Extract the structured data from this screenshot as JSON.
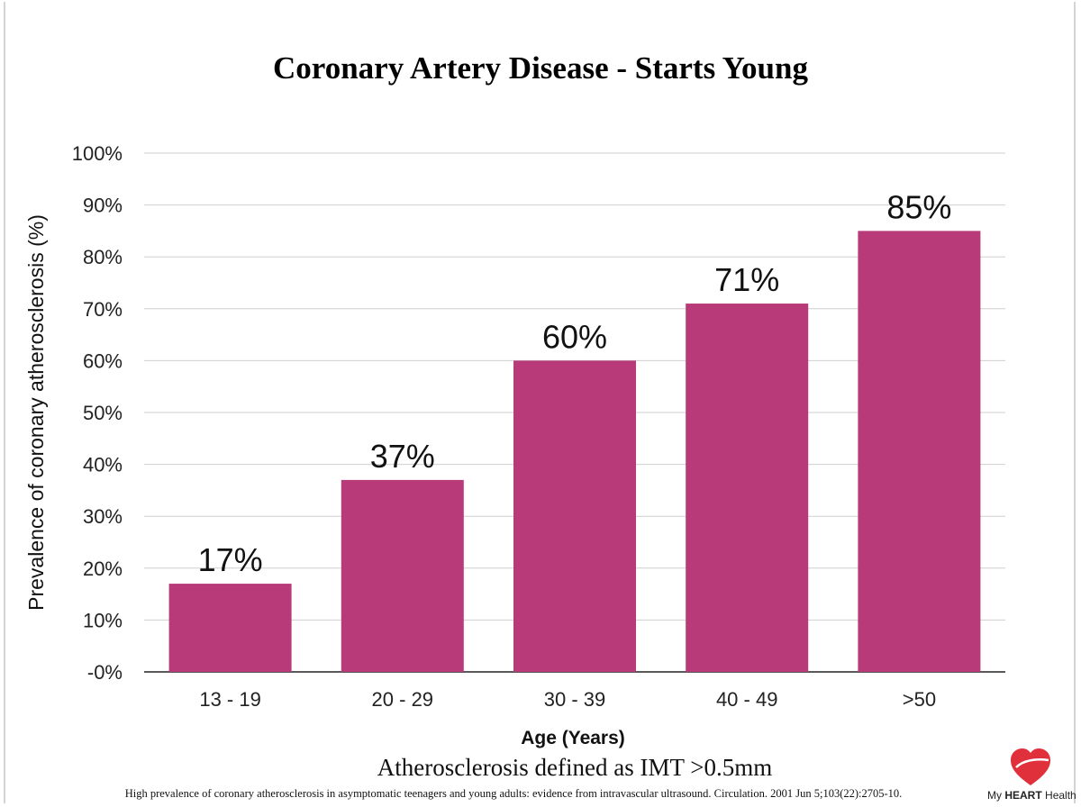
{
  "chart_data": {
    "type": "bar",
    "title": "Coronary Artery Disease - Starts Young",
    "xlabel": "Age (Years)",
    "ylabel": "Prevalence of coronary atherosclerosis (%)",
    "categories": [
      "13 - 19",
      "20 - 29",
      "30 - 39",
      "40 - 49",
      ">50"
    ],
    "values": [
      17,
      37,
      60,
      71,
      85
    ],
    "data_labels": [
      "17%",
      "37%",
      "60%",
      "71%",
      "85%"
    ],
    "ylim": [
      0,
      100
    ],
    "y_ticks": [
      0,
      10,
      20,
      30,
      40,
      50,
      60,
      70,
      80,
      90,
      100
    ],
    "y_tick_labels": [
      "-0%",
      "10%",
      "20%",
      "30%",
      "40%",
      "50%",
      "60%",
      "70%",
      "80%",
      "90%",
      "100%"
    ],
    "grid": true,
    "bar_color": "#b93a78"
  },
  "subtitle": "Atherosclerosis defined as IMT >0.5mm",
  "citation": "High prevalence of coronary atherosclerosis in asymptomatic teenagers and young adults: evidence from intravascular ultrasound. Circulation. 2001 Jun 5;103(22):2705-10.",
  "logo": {
    "prefix": "My",
    "brand": "HEART",
    "suffix": "Health",
    "icon": "heart-icon",
    "color": "#e0303c"
  }
}
